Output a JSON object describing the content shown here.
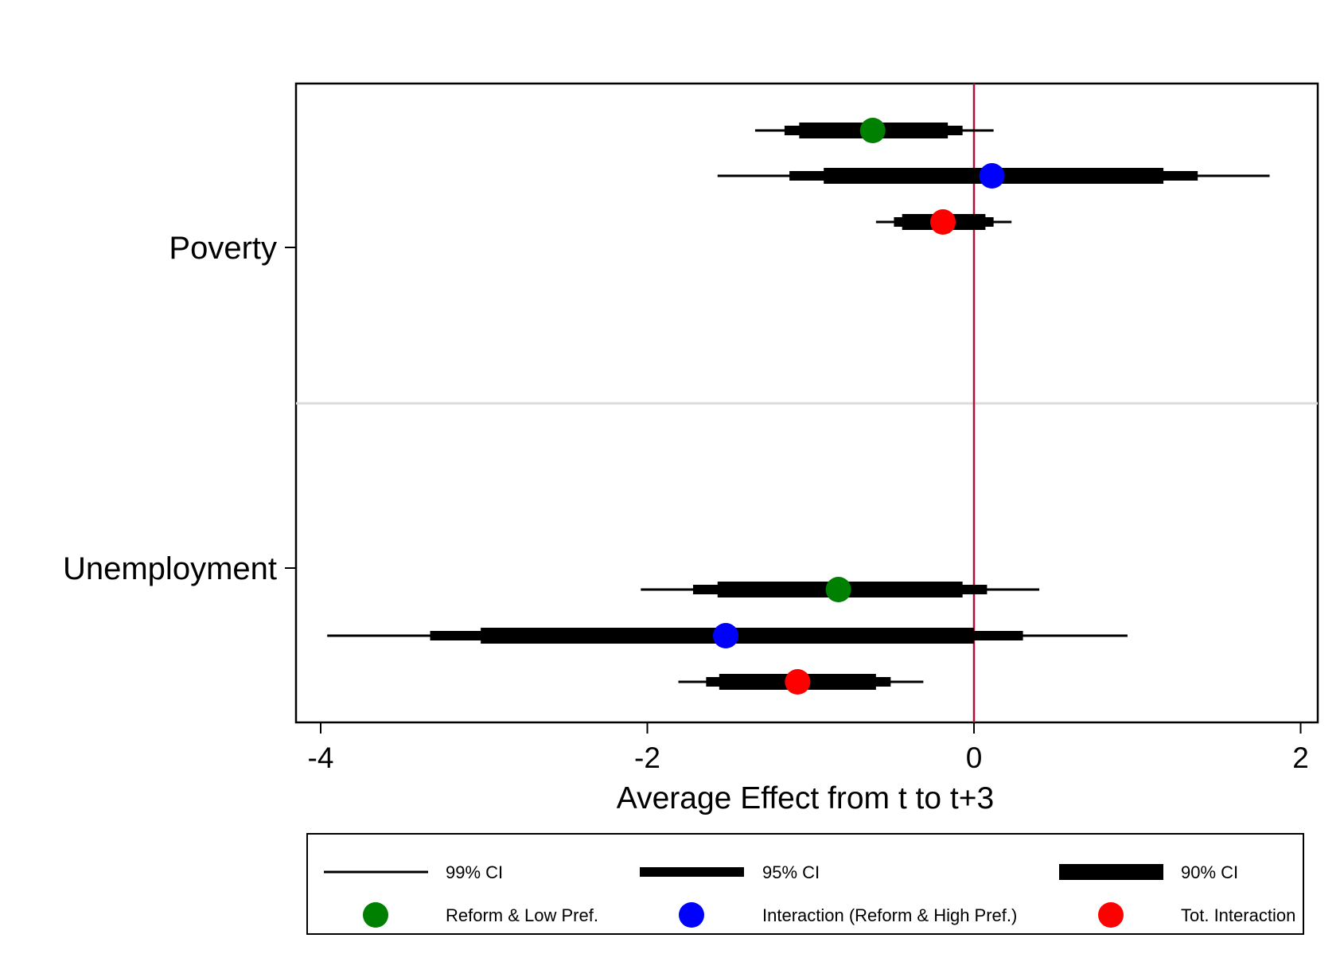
{
  "chart_data": {
    "type": "scatter",
    "subtype": "coefficient-plot",
    "orientation": "horizontal",
    "title": "",
    "xlabel": "Average Effect from t to t+3",
    "ylabel": "",
    "xlim": [
      -4.05,
      2.15
    ],
    "xticks": [
      -4,
      -2,
      0,
      2
    ],
    "xtick_labels": [
      "-4",
      "-2",
      "0",
      "2"
    ],
    "reference_line": {
      "x": 0,
      "color": "#b0103a"
    },
    "grid": false,
    "categories": [
      "Poverty",
      "Unemployment"
    ],
    "series": [
      {
        "name": "Reform & Low Pref.",
        "color": "#008000",
        "points": [
          {
            "category": "Poverty",
            "estimate": -0.62,
            "ci90": [
              -1.07,
              -0.16
            ],
            "ci95": [
              -1.16,
              -0.07
            ],
            "ci99": [
              -1.34,
              0.12
            ]
          },
          {
            "category": "Unemployment",
            "estimate": -0.83,
            "ci90": [
              -1.57,
              -0.07
            ],
            "ci95": [
              -1.72,
              0.08
            ],
            "ci99": [
              -2.04,
              0.4
            ]
          }
        ]
      },
      {
        "name": "Interaction (Reform & High Pref.)",
        "color": "#0000ff",
        "points": [
          {
            "category": "Poverty",
            "estimate": 0.11,
            "ci90": [
              -0.92,
              1.16
            ],
            "ci95": [
              -1.13,
              1.37
            ],
            "ci99": [
              -1.57,
              1.81
            ]
          },
          {
            "category": "Unemployment",
            "estimate": -1.52,
            "ci90": [
              -3.02,
              0.0
            ],
            "ci95": [
              -3.33,
              0.3
            ],
            "ci99": [
              -3.96,
              0.94
            ]
          }
        ]
      },
      {
        "name": "Tot. Interaction",
        "color": "#ff0000",
        "points": [
          {
            "category": "Poverty",
            "estimate": -0.19,
            "ci90": [
              -0.44,
              0.07
            ],
            "ci95": [
              -0.49,
              0.12
            ],
            "ci99": [
              -0.6,
              0.23
            ]
          },
          {
            "category": "Unemployment",
            "estimate": -1.08,
            "ci90": [
              -1.56,
              -0.6
            ],
            "ci95": [
              -1.64,
              -0.51
            ],
            "ci99": [
              -1.81,
              -0.31
            ]
          }
        ]
      }
    ],
    "ci_levels": [
      {
        "name": "99% CI",
        "width": "thin"
      },
      {
        "name": "95% CI",
        "width": "medium"
      },
      {
        "name": "90% CI",
        "width": "thick"
      }
    ],
    "legend": {
      "position": "bottom",
      "items": [
        "99% CI",
        "95% CI",
        "90% CI",
        "Reform & Low Pref.",
        "Interaction (Reform & High Pref.)",
        "Tot. Interaction"
      ]
    }
  }
}
